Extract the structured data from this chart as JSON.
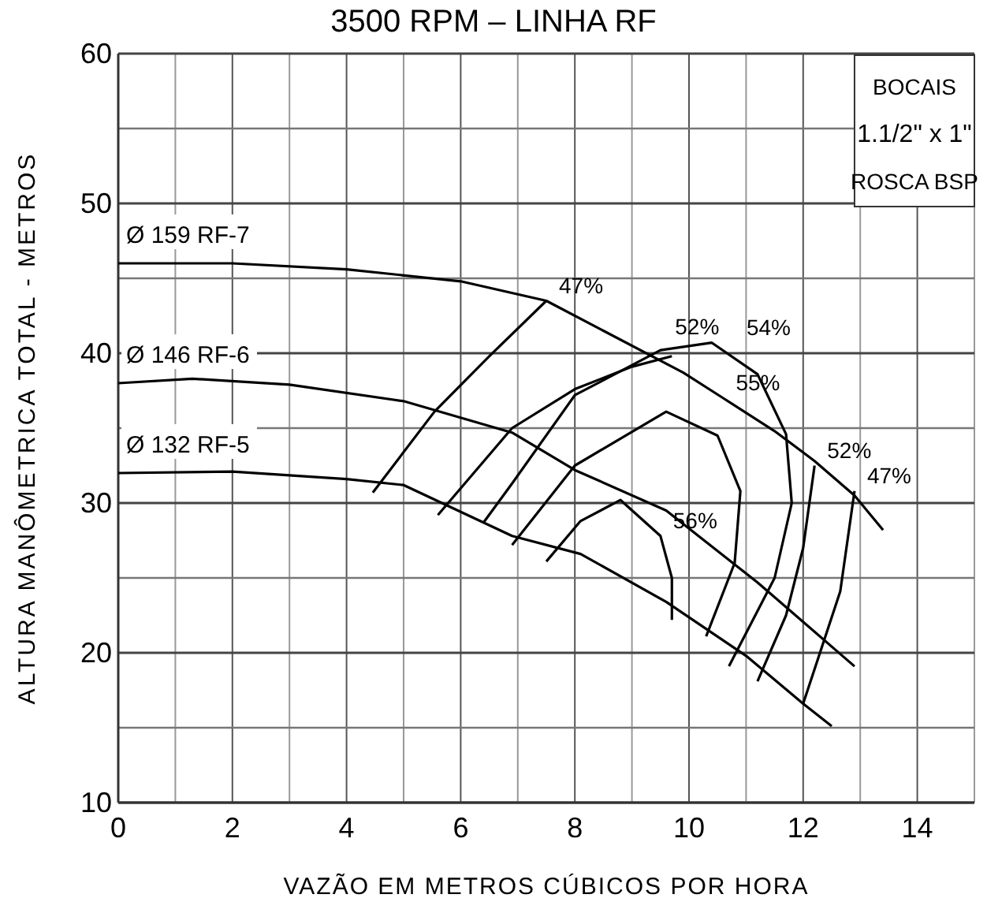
{
  "chart_data": {
    "type": "line",
    "title": "3500 RPM – LINHA RF",
    "xlabel": "VAZÃO EM METROS CÚBICOS POR HORA",
    "ylabel": "ALTURA MANÔMETRICA TOTAL - METROS",
    "xlim": [
      0,
      15
    ],
    "ylim": [
      10,
      60
    ],
    "xticks": [
      0,
      {
        "value": 1,
        "label": null
      },
      2,
      {
        "value": 3,
        "label": null
      },
      4,
      {
        "value": 5,
        "label": null
      },
      6,
      {
        "value": 7,
        "label": null
      },
      8,
      {
        "value": 9,
        "label": null
      },
      {
        "value": 10,
        "label": "10"
      },
      {
        "value": 11,
        "label": null
      },
      {
        "value": 12,
        "label": "12"
      },
      {
        "value": 13,
        "label": null
      },
      {
        "value": 14,
        "label": "14"
      },
      {
        "value": 15,
        "label": null
      }
    ],
    "yticks": [
      10,
      {
        "value": 15,
        "label": null
      },
      20,
      {
        "value": 25,
        "label": null
      },
      30,
      {
        "value": 35,
        "label": null
      },
      40,
      {
        "value": 45,
        "label": null
      },
      50,
      {
        "value": 55,
        "label": null
      },
      60
    ],
    "grid": true,
    "marker": "none",
    "line_style": "solid",
    "series": [
      {
        "name": "Ø 159 RF-7",
        "color": "#000000",
        "x": [
          0,
          2,
          4,
          6,
          7.5,
          8.5,
          9.9,
          10.6,
          11.5,
          12.2,
          12.9,
          13.4
        ],
        "values": [
          46,
          46,
          45.6,
          44.8,
          43.5,
          41.5,
          38.7,
          37,
          34.8,
          32.8,
          30.5,
          28.2
        ]
      },
      {
        "name": "Ø 146 RF-6",
        "color": "#000000",
        "x": [
          0,
          1.3,
          3,
          5,
          6.9,
          8,
          9.6,
          11.2,
          12.9
        ],
        "values": [
          38,
          38.3,
          37.9,
          36.8,
          34.7,
          32.2,
          29.5,
          24.7,
          19.1
        ]
      },
      {
        "name": "Ø 132 RF-5",
        "color": "#000000",
        "x": [
          0,
          2,
          4,
          5,
          6.9,
          8.1,
          9.6,
          11,
          12,
          12.5
        ],
        "values": [
          32,
          32.1,
          31.6,
          31.2,
          27.8,
          26.6,
          23.4,
          19.8,
          16.6,
          15.1
        ]
      },
      {
        "color": "#000000",
        "x": [
          4.46,
          5.54,
          6.5,
          7.5
        ],
        "values": [
          30.7,
          36.1,
          39.8,
          43.5
        ]
      },
      {
        "color": "#000000",
        "x": [
          5.6,
          6.9,
          8,
          9,
          9.7
        ],
        "values": [
          29.2,
          35,
          37.6,
          39.1,
          39.8
        ]
      },
      {
        "color": "#000000",
        "x": [
          6.4,
          6.9,
          8,
          9.5,
          10.4,
          11.2,
          11.7,
          11.8,
          11.5,
          10.7
        ],
        "values": [
          28.7,
          31.3,
          37.2,
          40.2,
          40.7,
          38.6,
          34.6,
          30,
          25,
          19.1
        ]
      },
      {
        "color": "#000000",
        "x": [
          6.9,
          8,
          9.6,
          10.5,
          10.9,
          10.8,
          10.3
        ],
        "values": [
          27.2,
          32.5,
          36.1,
          34.5,
          30.8,
          26,
          21.1
        ]
      },
      {
        "color": "#000000",
        "x": [
          7.5,
          8.1,
          8.8,
          9.5,
          9.7,
          9.7
        ],
        "values": [
          26.1,
          28.8,
          30.2,
          27.8,
          25,
          22.2
        ]
      },
      {
        "color": "#000000",
        "x": [
          11.2,
          11.7,
          12,
          12.2
        ],
        "values": [
          18.1,
          22.5,
          27,
          32.5
        ]
      },
      {
        "color": "#000000",
        "x": [
          12,
          12.65,
          12.9
        ],
        "values": [
          16.6,
          24.1,
          30.8
        ]
      }
    ],
    "annotations": [
      "BOCAIS",
      "1.1/2\" x 1\"",
      "ROSCA BSP",
      {
        "text": "47%",
        "x": 7.5,
        "y": 43.5
      },
      {
        "text": "52%",
        "x": 9.7,
        "y": 39.8
      },
      {
        "text": "54%",
        "x": 10.4,
        "y": 40.7
      },
      {
        "text": "55%",
        "x": 10.6,
        "y": 37
      },
      {
        "text": "52%",
        "x": 12.2,
        "y": 32.5
      },
      {
        "text": "47%",
        "x": 12.9,
        "y": 30.8
      },
      {
        "text": "56%",
        "x": 9.5,
        "y": 27.8
      }
    ]
  }
}
